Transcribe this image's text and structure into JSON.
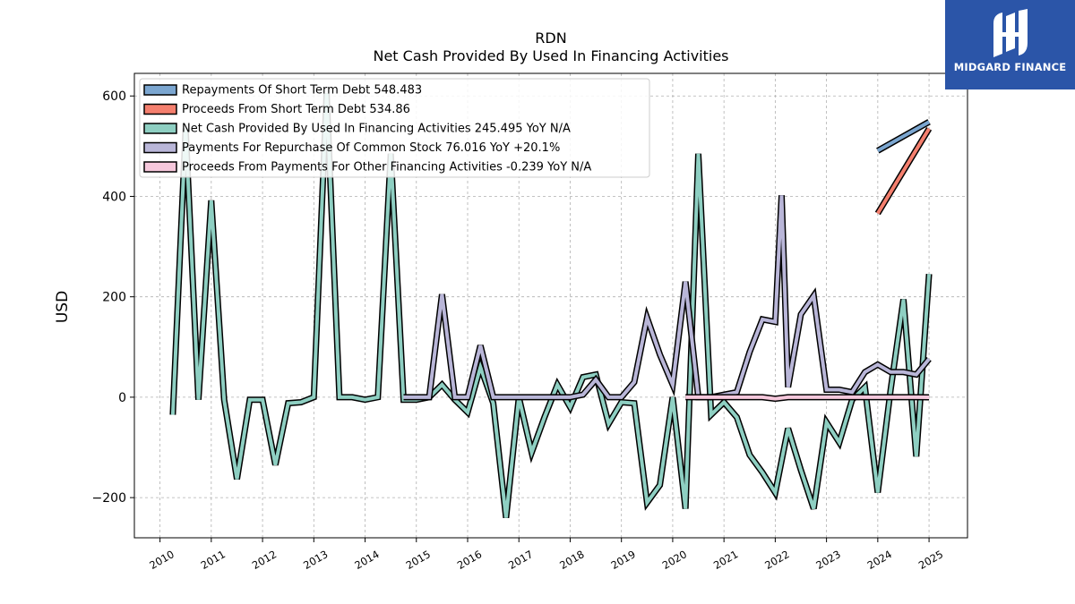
{
  "brand": {
    "name": "MIDGARD FINANCE",
    "bg_color": "#2b55a8"
  },
  "chart_data": {
    "type": "line",
    "title": "RDN",
    "subtitle": "Net Cash Provided By Used In Financing Activities",
    "ylabel": "USD",
    "xlabel": "",
    "xlim": [
      2009.5,
      2025.75
    ],
    "ylim": [
      -280,
      645
    ],
    "yticks": [
      -200,
      0,
      200,
      400,
      600
    ],
    "ytick_labels": [
      "−200",
      "0",
      "200",
      "400",
      "600"
    ],
    "xticks": [
      2010,
      2011,
      2012,
      2013,
      2014,
      2015,
      2016,
      2017,
      2018,
      2019,
      2020,
      2021,
      2022,
      2023,
      2024,
      2025
    ],
    "grid": true,
    "legend_position": "top-left",
    "series": [
      {
        "name": "Repayments Of Short Term Debt",
        "legend_label": "Repayments Of Short Term Debt  548.483",
        "color": "#7ba6d0",
        "x": [
          2024.0,
          2025.0
        ],
        "y": [
          491,
          548.483
        ]
      },
      {
        "name": "Proceeds From Short Term Debt",
        "legend_label": "Proceeds From Short Term Debt  534.86",
        "color": "#f47f6e",
        "x": [
          2024.0,
          2025.0
        ],
        "y": [
          366,
          534.86
        ]
      },
      {
        "name": "Net Cash Provided By Used In Financing Activities",
        "legend_label": "Net Cash Provided By Used In Financing Activities  245.495 YoY N/A",
        "color": "#8ecfc2",
        "x": [
          2010.25,
          2010.5,
          2010.75,
          2011.0,
          2011.25,
          2011.5,
          2011.75,
          2012.0,
          2012.25,
          2012.5,
          2012.75,
          2013.0,
          2013.25,
          2013.5,
          2013.75,
          2014.0,
          2014.25,
          2014.5,
          2014.75,
          2015.0,
          2015.25,
          2015.5,
          2015.75,
          2016.0,
          2016.25,
          2016.5,
          2016.75,
          2017.0,
          2017.25,
          2017.5,
          2017.75,
          2018.0,
          2018.25,
          2018.5,
          2018.75,
          2019.0,
          2019.25,
          2019.5,
          2019.75,
          2020.0,
          2020.25,
          2020.5,
          2020.75,
          2021.0,
          2021.25,
          2021.5,
          2021.75,
          2022.0,
          2022.25,
          2022.5,
          2022.75,
          2023.0,
          2023.25,
          2023.5,
          2023.75,
          2024.0,
          2024.25,
          2024.5,
          2024.75,
          2025.0
        ],
        "y": [
          -35,
          535,
          -5,
          392,
          -5,
          -163,
          -5,
          -5,
          -135,
          -12,
          -10,
          0,
          605,
          0,
          0,
          -5,
          0,
          485,
          -5,
          -5,
          0,
          25,
          -5,
          -30,
          60,
          -12,
          -240,
          0,
          -110,
          -40,
          25,
          -20,
          40,
          45,
          -53,
          -10,
          -12,
          -210,
          -175,
          0,
          -222,
          485,
          -35,
          -10,
          -40,
          -115,
          -150,
          -190,
          -62,
          -145,
          -222,
          -50,
          -90,
          -5,
          20,
          -190,
          15,
          195,
          -118,
          245.495
        ]
      },
      {
        "name": "Payments For Repurchase Of Common Stock",
        "legend_label": "Payments For Repurchase Of Common Stock  76.016 YoY +20.1%",
        "color": "#b9b6d8",
        "x": [
          2014.75,
          2015.0,
          2015.25,
          2015.5,
          2015.75,
          2016.0,
          2016.25,
          2016.5,
          2016.75,
          2017.0,
          2017.25,
          2017.5,
          2017.75,
          2018.0,
          2018.25,
          2018.5,
          2018.75,
          2019.0,
          2019.25,
          2019.5,
          2019.75,
          2020.0,
          2020.25,
          2020.5,
          2020.75,
          2021.0,
          2021.25,
          2021.5,
          2021.75,
          2022.0,
          2022.125,
          2022.25,
          2022.5,
          2022.75,
          2023.0,
          2023.25,
          2023.5,
          2023.75,
          2024.0,
          2024.25,
          2024.5,
          2024.75,
          2025.0
        ],
        "y": [
          0,
          0,
          0,
          205,
          0,
          0,
          103,
          0,
          0,
          0,
          0,
          0,
          0,
          0,
          5,
          35,
          0,
          0,
          30,
          158,
          85,
          25,
          230,
          0,
          0,
          5,
          10,
          90,
          155,
          150,
          402,
          20,
          165,
          202,
          15,
          15,
          10,
          50,
          65,
          50,
          50,
          45,
          76.016
        ]
      },
      {
        "name": "Proceeds From Payments For Other Financing Activities",
        "legend_label": "Proceeds From Payments For Other Financing Activities  -0.239 YoY N/A",
        "color": "#f6c8dc",
        "x": [
          2020.25,
          2020.5,
          2020.75,
          2021.0,
          2021.25,
          2021.5,
          2021.75,
          2022.0,
          2022.25,
          2022.5,
          2022.75,
          2023.0,
          2023.25,
          2023.5,
          2023.75,
          2024.0,
          2024.25,
          2024.5,
          2024.75,
          2025.0
        ],
        "y": [
          0,
          0,
          0,
          0,
          0,
          0,
          0,
          -3,
          0,
          0,
          0,
          0,
          0,
          0,
          0,
          0,
          0,
          0,
          0,
          -0.239
        ]
      }
    ]
  }
}
